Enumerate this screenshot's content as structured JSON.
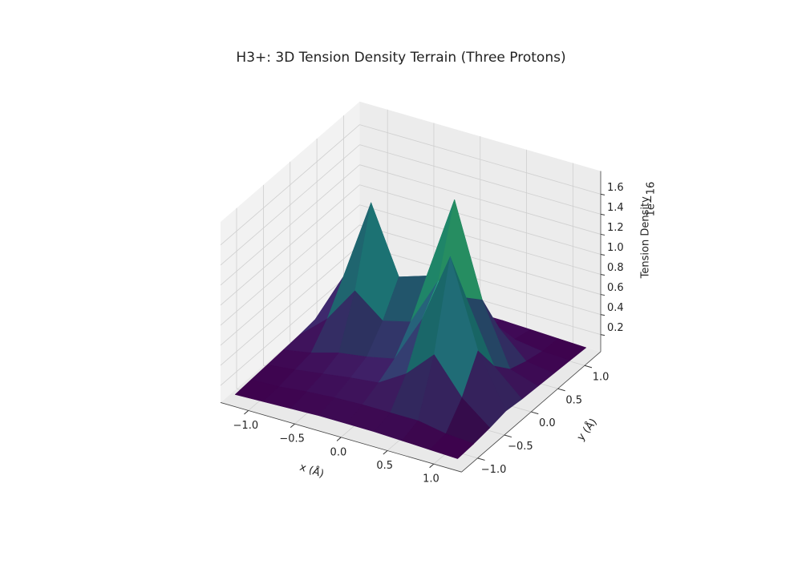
{
  "chart_data": {
    "type": "surface3d",
    "title": "H3+: 3D Tension Density Terrain (Three Protons)",
    "x_label": "x (Å)",
    "y_label": "y (Å)",
    "z_label": "Tension Density",
    "z_offset_label": "1e−16",
    "colormap": "viridis",
    "grid": true,
    "x": [
      -1.2,
      -0.9,
      -0.6,
      -0.3,
      0,
      0.3,
      0.6,
      0.9,
      1.2
    ],
    "y": [
      -1.2,
      -0.9,
      -0.6,
      -0.3,
      0,
      0.3,
      0.6,
      0.9,
      1.2
    ],
    "z": [
      [
        0.09,
        0.1,
        0.11,
        0.12,
        0.12,
        0.12,
        0.11,
        0.1,
        0.09
      ],
      [
        0.1,
        0.11,
        0.14,
        0.16,
        0.17,
        0.17,
        0.17,
        0.12,
        0.1
      ],
      [
        0.11,
        0.14,
        0.18,
        0.22,
        0.25,
        0.42,
        0.69,
        0.34,
        0.12
      ],
      [
        0.12,
        0.17,
        0.25,
        0.29,
        0.35,
        0.83,
        1.53,
        0.67,
        0.15
      ],
      [
        0.13,
        0.37,
        0.73,
        0.51,
        0.58,
        1.07,
        0.98,
        0.38,
        0.13
      ],
      [
        0.15,
        0.65,
        1.47,
        0.81,
        0.9,
        1.74,
        0.82,
        0.21,
        0.12
      ],
      [
        0.12,
        0.34,
        0.67,
        0.43,
        0.48,
        0.79,
        0.41,
        0.15,
        0.11
      ],
      [
        0.1,
        0.12,
        0.17,
        0.17,
        0.18,
        0.2,
        0.15,
        0.11,
        0.1
      ],
      [
        0.09,
        0.1,
        0.11,
        0.12,
        0.12,
        0.12,
        0.11,
        0.1,
        0.09
      ]
    ],
    "xlim": [
      -1.3,
      1.3
    ],
    "ylim": [
      -1.3,
      1.3
    ],
    "zlim": [
      0.03,
      1.83
    ],
    "xticks": [
      {
        "value": -1,
        "label": "−1.0"
      },
      {
        "value": -0.5,
        "label": "−0.5"
      },
      {
        "value": 0,
        "label": "0.0"
      },
      {
        "value": 0.5,
        "label": "0.5"
      },
      {
        "value": 1,
        "label": "1.0"
      }
    ],
    "yticks": [
      {
        "value": -1,
        "label": "−1.0"
      },
      {
        "value": -0.5,
        "label": "−0.5"
      },
      {
        "value": 0,
        "label": "0.0"
      },
      {
        "value": 0.5,
        "label": "0.5"
      },
      {
        "value": 1,
        "label": "1.0"
      }
    ],
    "zticks": [
      0.2,
      0.4,
      0.6,
      0.8,
      {
        "value": 1,
        "label": "1.0"
      },
      1.2,
      1.4,
      1.6
    ]
  }
}
